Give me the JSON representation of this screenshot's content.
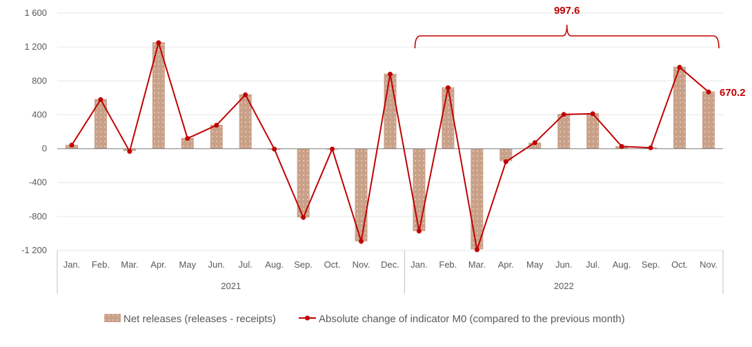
{
  "chart_data": {
    "type": "bar+line",
    "title": "",
    "xlabel": "",
    "ylabel": "",
    "ylim": [
      -1200,
      1600
    ],
    "yticks": [
      -1200,
      -800,
      -400,
      0,
      400,
      800,
      1200,
      1600
    ],
    "ytick_labels": [
      "-1 200",
      "-800",
      "-400",
      "0",
      "400",
      "800",
      "1 200",
      "1 600"
    ],
    "grid": true,
    "legend_position": "bottom",
    "groups": [
      {
        "label": "2021",
        "categories": [
          "Jan.",
          "Feb.",
          "Mar.",
          "Apr.",
          "May",
          "Jun.",
          "Jul.",
          "Aug.",
          "Sep.",
          "Oct.",
          "Nov.",
          "Dec."
        ]
      },
      {
        "label": "2022",
        "categories": [
          "Jan.",
          "Feb.",
          "Mar.",
          "Apr.",
          "May",
          "Jun.",
          "Jul.",
          "Aug.",
          "Sep.",
          "Oct.",
          "Nov."
        ]
      }
    ],
    "series": [
      {
        "name": "Net releases (releases - receipts)",
        "type": "bar",
        "color": "#c9a088",
        "values": [
          46,
          585,
          -27,
          1256,
          126,
          282,
          642,
          -13,
          -811,
          -10,
          -1093,
          886,
          -972,
          725,
          -1187,
          -148,
          72,
          411,
          419,
          32,
          16,
          966,
          676
        ]
      },
      {
        "name": "Absolute change of indicator M0 (compared to the previous month)",
        "type": "line",
        "color": "#c00000",
        "values": [
          43,
          580,
          -32,
          1251,
          121,
          277,
          636,
          -5,
          -811,
          -3,
          -1093,
          880,
          -972,
          720,
          -1192,
          -153,
          72,
          405,
          413,
          27,
          11,
          961,
          670.2
        ]
      }
    ],
    "annotations": {
      "last_point_label": "670.2",
      "bracket_label": "997.6",
      "bracket_span": [
        "Jan. 2022",
        "Nov. 2022"
      ]
    }
  }
}
